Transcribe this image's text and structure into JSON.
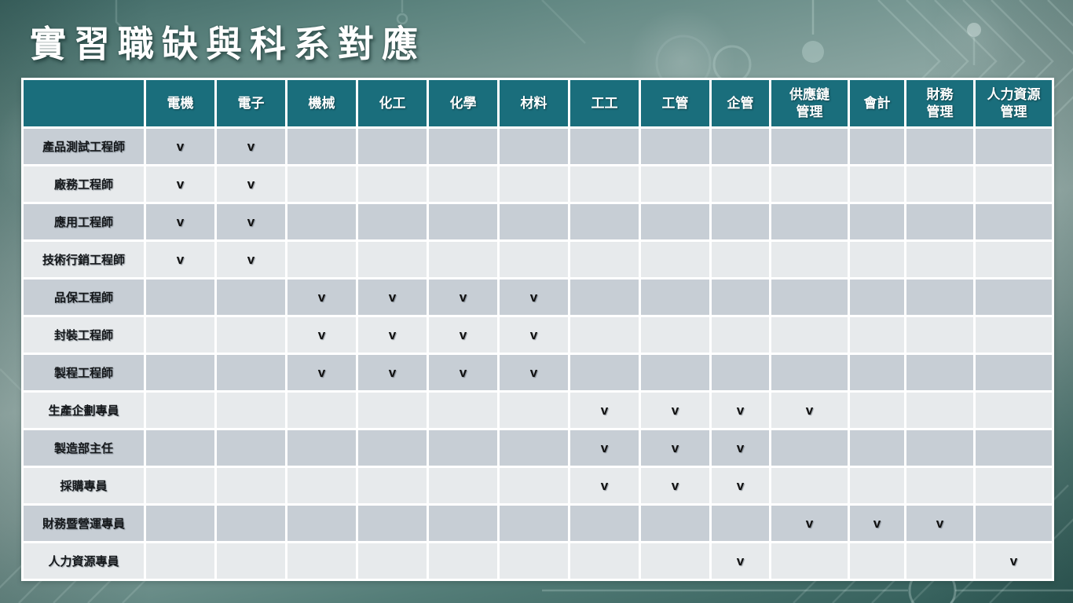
{
  "title": "實習職缺與科系對應",
  "table": {
    "corner_label": "",
    "check_symbol": "v",
    "columns": [
      "電機",
      "電子",
      "機械",
      "化工",
      "化學",
      "材料",
      "工工",
      "工管",
      "企管",
      "供應鏈\n管理",
      "會計",
      "財務\n管理",
      "人力資源\n管理"
    ],
    "rows": [
      {
        "label": "產品測試工程師",
        "checks": [
          1,
          1,
          0,
          0,
          0,
          0,
          0,
          0,
          0,
          0,
          0,
          0,
          0
        ]
      },
      {
        "label": "廠務工程師",
        "checks": [
          1,
          1,
          0,
          0,
          0,
          0,
          0,
          0,
          0,
          0,
          0,
          0,
          0
        ]
      },
      {
        "label": "應用工程師",
        "checks": [
          1,
          1,
          0,
          0,
          0,
          0,
          0,
          0,
          0,
          0,
          0,
          0,
          0
        ]
      },
      {
        "label": "技術行銷工程師",
        "checks": [
          1,
          1,
          0,
          0,
          0,
          0,
          0,
          0,
          0,
          0,
          0,
          0,
          0
        ]
      },
      {
        "label": "品保工程師",
        "checks": [
          0,
          0,
          1,
          1,
          1,
          1,
          0,
          0,
          0,
          0,
          0,
          0,
          0
        ]
      },
      {
        "label": "封裝工程師",
        "checks": [
          0,
          0,
          1,
          1,
          1,
          1,
          0,
          0,
          0,
          0,
          0,
          0,
          0
        ]
      },
      {
        "label": "製程工程師",
        "checks": [
          0,
          0,
          1,
          1,
          1,
          1,
          0,
          0,
          0,
          0,
          0,
          0,
          0
        ]
      },
      {
        "label": "生產企劃專員",
        "checks": [
          0,
          0,
          0,
          0,
          0,
          0,
          1,
          1,
          1,
          1,
          0,
          0,
          0
        ]
      },
      {
        "label": "製造部主任",
        "checks": [
          0,
          0,
          0,
          0,
          0,
          0,
          1,
          1,
          1,
          0,
          0,
          0,
          0
        ]
      },
      {
        "label": "採購專員",
        "checks": [
          0,
          0,
          0,
          0,
          0,
          0,
          1,
          1,
          1,
          0,
          0,
          0,
          0
        ]
      },
      {
        "label": "財務暨營運專員",
        "checks": [
          0,
          0,
          0,
          0,
          0,
          0,
          0,
          0,
          0,
          1,
          1,
          1,
          0
        ]
      },
      {
        "label": "人力資源專員",
        "checks": [
          0,
          0,
          0,
          0,
          0,
          0,
          0,
          0,
          1,
          0,
          0,
          0,
          1
        ]
      }
    ]
  },
  "colors": {
    "header_background": "#1A6E7C",
    "row_dark": "#C7CED5",
    "row_light": "#E7EAEC",
    "grid": "#FFFFFF",
    "title_text": "#FFFFFF",
    "check_text": "#111111",
    "background_top": "#406966",
    "background_middle": "#AABFBB",
    "background_bottom": "#2E5955",
    "circuit_trace": "#D8ECE7"
  }
}
